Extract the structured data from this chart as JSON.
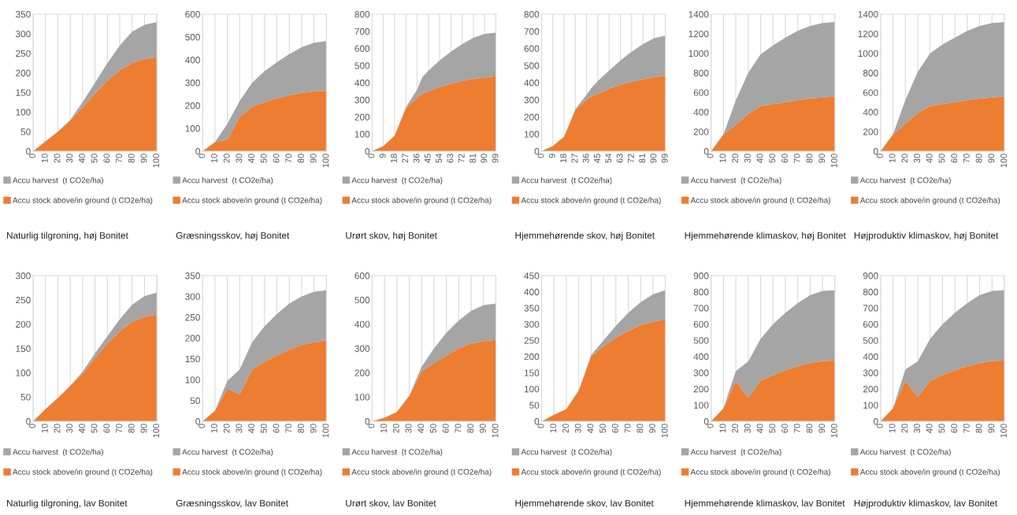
{
  "chart_data": [
    {
      "type": "area",
      "stacked": true,
      "title": "Naturlig tilgroning, høj Bonitet",
      "x": [
        0,
        10,
        20,
        30,
        40,
        50,
        60,
        70,
        80,
        90,
        100
      ],
      "xlim": [
        0,
        100
      ],
      "xticks": [
        0,
        10,
        20,
        30,
        40,
        50,
        60,
        70,
        80,
        90,
        100
      ],
      "ylim": [
        0,
        350
      ],
      "yticks": [
        0,
        50,
        100,
        150,
        200,
        250,
        300,
        350
      ],
      "grid": "x",
      "legend": "bottom",
      "series": [
        {
          "name": "Accu stock above/in ground (t CO2e/ha)",
          "color": "#ed7d31",
          "values": [
            0,
            25,
            50,
            78,
            112,
            148,
            180,
            207,
            225,
            236,
            240
          ]
        },
        {
          "name": "Accu harvest  (t CO2e/ha)",
          "color": "#a5a5a5",
          "values": [
            0,
            0,
            0,
            2,
            13,
            27,
            45,
            63,
            80,
            87,
            90
          ]
        }
      ]
    },
    {
      "type": "area",
      "stacked": true,
      "title": "Græsningsskov, høj Bonitet",
      "x": [
        0,
        10,
        20,
        30,
        40,
        50,
        60,
        70,
        80,
        90,
        100
      ],
      "xlim": [
        0,
        100
      ],
      "xticks": [
        0,
        10,
        20,
        30,
        40,
        50,
        60,
        70,
        80,
        90,
        100
      ],
      "ylim": [
        0,
        600
      ],
      "yticks": [
        0,
        100,
        200,
        300,
        400,
        500,
        600
      ],
      "grid": "x",
      "legend": "bottom",
      "series": [
        {
          "name": "Accu stock above/in ground (t CO2e/ha)",
          "color": "#ed7d31",
          "values": [
            0,
            40,
            50,
            150,
            195,
            215,
            232,
            245,
            255,
            262,
            265
          ]
        },
        {
          "name": "Accu harvest  (t CO2e/ha)",
          "color": "#a5a5a5",
          "values": [
            0,
            0,
            70,
            70,
            105,
            135,
            158,
            180,
            200,
            213,
            217
          ]
        }
      ]
    },
    {
      "type": "area",
      "stacked": true,
      "title": "Urørt skov, høj Bonitet",
      "x": [
        0,
        9,
        18,
        27,
        36,
        40,
        45,
        54,
        63,
        72,
        81,
        90,
        99
      ],
      "xlim": [
        0,
        99
      ],
      "xticks": [
        0,
        9,
        18,
        27,
        36,
        45,
        54,
        63,
        72,
        81,
        90,
        99
      ],
      "ylim": [
        0,
        800
      ],
      "yticks": [
        0,
        100,
        200,
        300,
        400,
        500,
        600,
        700,
        800
      ],
      "grid": "x",
      "legend": "bottom",
      "series": [
        {
          "name": "Accu stock above/in ground (t CO2e/ha)",
          "color": "#ed7d31",
          "values": [
            0,
            30,
            90,
            250,
            310,
            335,
            350,
            375,
            393,
            410,
            422,
            430,
            438
          ]
        },
        {
          "name": "Accu harvest  (t CO2e/ha)",
          "color": "#a5a5a5",
          "values": [
            0,
            0,
            0,
            5,
            50,
            95,
            120,
            155,
            187,
            215,
            240,
            255,
            254
          ]
        }
      ]
    },
    {
      "type": "area",
      "stacked": true,
      "title": "Hjemmehørende skov, høj Bonitet",
      "x": [
        0,
        9,
        18,
        27,
        36,
        40,
        45,
        54,
        63,
        72,
        81,
        90,
        99
      ],
      "xlim": [
        0,
        99
      ],
      "xticks": [
        0,
        9,
        18,
        27,
        36,
        45,
        54,
        63,
        72,
        81,
        90,
        99
      ],
      "ylim": [
        0,
        800
      ],
      "yticks": [
        0,
        100,
        200,
        300,
        400,
        500,
        600,
        700,
        800
      ],
      "grid": "x",
      "legend": "bottom",
      "series": [
        {
          "name": "Accu stock above/in ground (t CO2e/ha)",
          "color": "#ed7d31",
          "values": [
            0,
            30,
            85,
            240,
            300,
            320,
            335,
            365,
            388,
            405,
            420,
            432,
            440
          ]
        },
        {
          "name": "Accu harvest  (t CO2e/ha)",
          "color": "#a5a5a5",
          "values": [
            0,
            0,
            0,
            5,
            30,
            50,
            75,
            105,
            142,
            175,
            205,
            228,
            235
          ]
        }
      ]
    },
    {
      "type": "area",
      "stacked": true,
      "title": "Hjemmehørende klimaskov, høj Bonitet",
      "x": [
        0,
        10,
        20,
        30,
        40,
        50,
        60,
        70,
        80,
        90,
        100
      ],
      "xlim": [
        0,
        100
      ],
      "xticks": [
        0,
        10,
        20,
        30,
        40,
        50,
        60,
        70,
        80,
        90,
        100
      ],
      "ylim": [
        0,
        1400
      ],
      "yticks": [
        0,
        200,
        400,
        600,
        800,
        1000,
        1200,
        1400
      ],
      "grid": "x",
      "legend": "bottom",
      "series": [
        {
          "name": "Accu stock above/in ground (t CO2e/ha)",
          "color": "#ed7d31",
          "values": [
            0,
            170,
            270,
            380,
            460,
            480,
            500,
            520,
            540,
            550,
            560
          ]
        },
        {
          "name": "Accu harvest  (t CO2e/ha)",
          "color": "#a5a5a5",
          "values": [
            0,
            0,
            250,
            420,
            530,
            600,
            660,
            710,
            740,
            760,
            760
          ]
        }
      ]
    },
    {
      "type": "area",
      "stacked": true,
      "title": "Højproduktiv klimaskov, høj Bonitet",
      "x": [
        0,
        10,
        20,
        30,
        40,
        50,
        60,
        70,
        80,
        90,
        100
      ],
      "xlim": [
        0,
        100
      ],
      "xticks": [
        0,
        10,
        20,
        30,
        40,
        50,
        60,
        70,
        80,
        90,
        100
      ],
      "ylim": [
        0,
        1400
      ],
      "yticks": [
        0,
        200,
        400,
        600,
        800,
        1000,
        1200,
        1400
      ],
      "grid": "x",
      "legend": "bottom",
      "series": [
        {
          "name": "Accu stock above/in ground (t CO2e/ha)",
          "color": "#ed7d31",
          "values": [
            0,
            170,
            280,
            390,
            460,
            480,
            500,
            520,
            540,
            550,
            560
          ]
        },
        {
          "name": "Accu harvest  (t CO2e/ha)",
          "color": "#a5a5a5",
          "values": [
            0,
            0,
            240,
            420,
            540,
            610,
            660,
            710,
            740,
            760,
            760
          ]
        }
      ]
    },
    {
      "type": "area",
      "stacked": true,
      "title": "Naturlig tilgroning, lav Bonitet",
      "x": [
        0,
        10,
        20,
        30,
        40,
        50,
        60,
        70,
        80,
        90,
        100
      ],
      "xlim": [
        0,
        100
      ],
      "xticks": [
        0,
        10,
        20,
        30,
        40,
        50,
        60,
        70,
        80,
        90,
        100
      ],
      "ylim": [
        0,
        300
      ],
      "yticks": [
        0,
        50,
        100,
        150,
        200,
        250,
        300
      ],
      "grid": "x",
      "legend": "bottom",
      "series": [
        {
          "name": "Accu stock above/in ground (t CO2e/ha)",
          "color": "#ed7d31",
          "values": [
            0,
            25,
            48,
            73,
            98,
            130,
            160,
            185,
            205,
            215,
            220
          ]
        },
        {
          "name": "Accu harvest  (t CO2e/ha)",
          "color": "#a5a5a5",
          "values": [
            0,
            0,
            0,
            0,
            4,
            10,
            15,
            25,
            35,
            43,
            45
          ]
        }
      ]
    },
    {
      "type": "area",
      "stacked": true,
      "title": "Græsningsskov, lav Bonitet",
      "x": [
        0,
        10,
        20,
        30,
        40,
        50,
        60,
        70,
        80,
        90,
        100
      ],
      "xlim": [
        0,
        100
      ],
      "xticks": [
        0,
        10,
        20,
        30,
        40,
        50,
        60,
        70,
        80,
        90,
        100
      ],
      "ylim": [
        0,
        350
      ],
      "yticks": [
        0,
        50,
        100,
        150,
        200,
        250,
        300,
        350
      ],
      "grid": "x",
      "legend": "bottom",
      "series": [
        {
          "name": "Accu stock above/in ground (t CO2e/ha)",
          "color": "#ed7d31",
          "values": [
            0,
            25,
            78,
            65,
            125,
            143,
            158,
            172,
            183,
            190,
            195
          ]
        },
        {
          "name": "Accu harvest  (t CO2e/ha)",
          "color": "#a5a5a5",
          "values": [
            0,
            0,
            19,
            60,
            65,
            85,
            100,
            111,
            117,
            121,
            120
          ]
        }
      ]
    },
    {
      "type": "area",
      "stacked": true,
      "title": "Urørt skov, lav Bonitet",
      "x": [
        0,
        10,
        20,
        30,
        40,
        50,
        60,
        70,
        80,
        90,
        100
      ],
      "xlim": [
        0,
        100
      ],
      "xticks": [
        0,
        10,
        20,
        30,
        40,
        50,
        60,
        70,
        80,
        90,
        100
      ],
      "ylim": [
        0,
        600
      ],
      "yticks": [
        0,
        100,
        200,
        300,
        400,
        500,
        600
      ],
      "grid": "x",
      "legend": "bottom",
      "series": [
        {
          "name": "Accu stock above/in ground (t CO2e/ha)",
          "color": "#ed7d31",
          "values": [
            0,
            15,
            38,
            105,
            205,
            240,
            270,
            300,
            320,
            330,
            335
          ]
        },
        {
          "name": "Accu harvest  (t CO2e/ha)",
          "color": "#a5a5a5",
          "values": [
            0,
            0,
            0,
            0,
            20,
            60,
            95,
            115,
            135,
            148,
            150
          ]
        }
      ]
    },
    {
      "type": "area",
      "stacked": true,
      "title": "Hjemmehørende skov, lav Bonitet",
      "x": [
        0,
        10,
        20,
        30,
        40,
        50,
        60,
        70,
        80,
        90,
        100
      ],
      "xlim": [
        0,
        100
      ],
      "xticks": [
        0,
        10,
        20,
        30,
        40,
        50,
        60,
        70,
        80,
        90,
        100
      ],
      "ylim": [
        0,
        450
      ],
      "yticks": [
        0,
        50,
        100,
        150,
        200,
        250,
        300,
        350,
        400,
        450
      ],
      "grid": "x",
      "legend": "bottom",
      "series": [
        {
          "name": "Accu stock above/in ground (t CO2e/ha)",
          "color": "#ed7d31",
          "values": [
            0,
            20,
            38,
            95,
            200,
            232,
            258,
            280,
            297,
            308,
            315
          ]
        },
        {
          "name": "Accu harvest  (t CO2e/ha)",
          "color": "#a5a5a5",
          "values": [
            0,
            0,
            0,
            0,
            5,
            18,
            37,
            55,
            71,
            84,
            90
          ]
        }
      ]
    },
    {
      "type": "area",
      "stacked": true,
      "title": "Hjemmehørende klimaskov, lav Bonitet",
      "x": [
        0,
        10,
        20,
        30,
        40,
        50,
        60,
        70,
        80,
        90,
        100
      ],
      "xlim": [
        0,
        100
      ],
      "xticks": [
        0,
        10,
        20,
        30,
        40,
        50,
        60,
        70,
        80,
        90,
        100
      ],
      "ylim": [
        0,
        900
      ],
      "yticks": [
        0,
        100,
        200,
        300,
        400,
        500,
        600,
        700,
        800,
        900
      ],
      "grid": "x",
      "legend": "bottom",
      "series": [
        {
          "name": "Accu stock above/in ground (t CO2e/ha)",
          "color": "#ed7d31",
          "values": [
            0,
            80,
            250,
            145,
            250,
            285,
            315,
            340,
            360,
            372,
            375
          ]
        },
        {
          "name": "Accu harvest  (t CO2e/ha)",
          "color": "#a5a5a5",
          "values": [
            0,
            0,
            60,
            225,
            260,
            315,
            355,
            390,
            420,
            433,
            435
          ]
        }
      ]
    },
    {
      "type": "area",
      "stacked": true,
      "title": "Højproduktiv klimaskov, lav Bonitet",
      "x": [
        0,
        10,
        20,
        30,
        40,
        50,
        60,
        70,
        80,
        90,
        100
      ],
      "xlim": [
        0,
        100
      ],
      "xticks": [
        0,
        10,
        20,
        30,
        40,
        50,
        60,
        70,
        80,
        90,
        100
      ],
      "ylim": [
        0,
        900
      ],
      "yticks": [
        0,
        100,
        200,
        300,
        400,
        500,
        600,
        700,
        800,
        900
      ],
      "grid": "x",
      "legend": "bottom",
      "series": [
        {
          "name": "Accu stock above/in ground (t CO2e/ha)",
          "color": "#ed7d31",
          "values": [
            0,
            80,
            250,
            150,
            250,
            285,
            315,
            340,
            360,
            372,
            375
          ]
        },
        {
          "name": "Accu harvest  (t CO2e/ha)",
          "color": "#a5a5a5",
          "values": [
            0,
            0,
            70,
            220,
            260,
            315,
            355,
            390,
            420,
            433,
            435
          ]
        }
      ]
    }
  ]
}
